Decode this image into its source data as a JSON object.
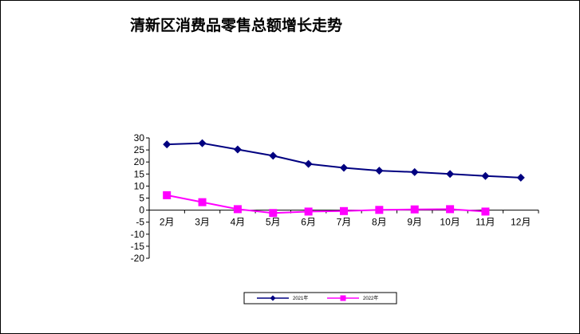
{
  "chart_data": {
    "type": "line",
    "title": "清新区消费品零售总额增长走势",
    "xlabel": "",
    "ylabel": "",
    "categories": [
      "2月",
      "3月",
      "4月",
      "5月",
      "6月",
      "7月",
      "8月",
      "9月",
      "10月",
      "11月",
      "12月"
    ],
    "ylim": [
      -20,
      30
    ],
    "yticks": [
      30,
      25,
      20,
      15,
      10,
      5,
      0,
      -5,
      -10,
      -15,
      -20
    ],
    "grid": false,
    "legend_position": "bottom",
    "series": [
      {
        "name": "2021年",
        "color": "#000080",
        "marker": "diamond",
        "values": [
          27.3,
          27.8,
          25.2,
          22.6,
          19.2,
          17.6,
          16.4,
          15.8,
          15.0,
          14.2,
          13.5
        ]
      },
      {
        "name": "2022年",
        "color": "#ff00ff",
        "marker": "square",
        "values": [
          6.2,
          3.3,
          0.4,
          -1.2,
          -0.6,
          -0.4,
          0.1,
          0.3,
          0.4,
          -0.6,
          null
        ]
      }
    ]
  }
}
